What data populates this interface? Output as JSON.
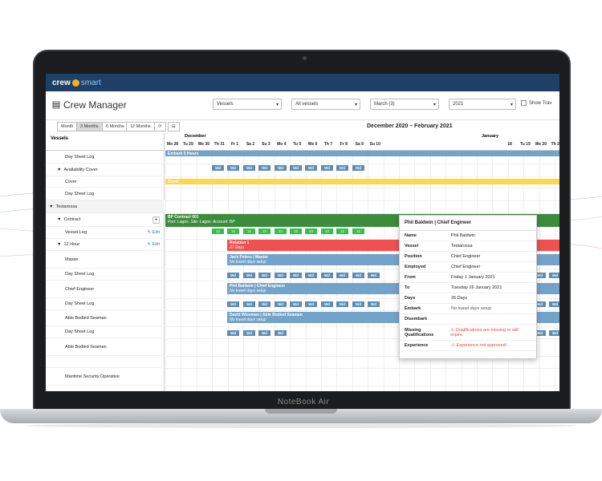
{
  "device": {
    "label": "NoteBook Air"
  },
  "app": {
    "logo_main": "crew",
    "logo_accent": "smart",
    "page_title": "Crew Manager"
  },
  "filters": {
    "type": "Vessels",
    "vessel": "All vessels",
    "month": "March (3)",
    "year": "2021",
    "show_label": "Show Trav"
  },
  "toolbar": {
    "views": [
      "Month",
      "3 Months",
      "6 Months",
      "12 Months"
    ],
    "active_view": "3 Months",
    "range_title": "December 2020 – February 2021"
  },
  "calendar": {
    "months": [
      "December",
      "January"
    ],
    "days": [
      "Mo 28",
      "Tu 29",
      "We 30",
      "Th 31",
      "Fr 1",
      "Sa 2",
      "Su 3",
      "Mo 4",
      "Tu 5",
      "We 6",
      "Th 7",
      "Fr 8",
      "Sa 9",
      "Su 10",
      "18",
      "Tu 19",
      "We 20",
      "Th 21"
    ]
  },
  "left": {
    "header": "Vessels",
    "rows": [
      {
        "label": "Day Sheet Log",
        "indent": 2
      },
      {
        "label": "Availability Cover",
        "indent": 1,
        "arrow": "▼"
      },
      {
        "label": "Cover",
        "indent": 2
      },
      {
        "label": "Day Sheet Log",
        "indent": 2
      },
      {
        "label": "Testarossa",
        "indent": 0,
        "arrow": "▼"
      },
      {
        "label": "Contract",
        "indent": 1,
        "arrow": "▼",
        "plus": "+"
      },
      {
        "label": "Vessel Log",
        "indent": 2,
        "edit": "Edit"
      },
      {
        "label": "12 Hour",
        "indent": 1,
        "arrow": "▼",
        "edit": "Edit"
      },
      {
        "label": "Master",
        "indent": 2
      },
      {
        "label": "Day Sheet Log",
        "indent": 2
      },
      {
        "label": "Chief Engineer",
        "indent": 2
      },
      {
        "label": "Day Sheet Log",
        "indent": 2
      },
      {
        "label": "Able Bodied Seaman",
        "indent": 2
      },
      {
        "label": "Day Sheet Log",
        "indent": 2
      },
      {
        "label": "Able Bodied Seaman",
        "indent": 2
      },
      {
        "label": "",
        "indent": 2
      },
      {
        "label": "Maritime Security Operative",
        "indent": 2
      }
    ]
  },
  "bars": {
    "embark": "Embark 5 Hours",
    "cover": "Cover",
    "contract_title": "BP Contract 001",
    "contract_sub": "Port: Lagos, Site: Lagos, Account: BP",
    "rotation_title": "Rotation 1",
    "rotation_sub": "27 Days",
    "master_title": "Jack Peters | Master",
    "master_sub": "No travel days setup",
    "engineer_title": "Phil Baldwin | Chief Engineer",
    "engineer_sub": "No travel days setup",
    "seaman_title": "David Wiseman | Able Bodied Seaman",
    "seaman_sub": "No travel days setup",
    "cell_wd": "Wd",
    "cell_12": "12"
  },
  "popup": {
    "title": "Phil Baldwin | Chief Engineer",
    "rows": [
      {
        "label": "Name",
        "value": "Phil Baldwin"
      },
      {
        "label": "Vessel",
        "value": "Testarossa"
      },
      {
        "label": "Position",
        "value": "Chief Engineer"
      },
      {
        "label": "Employed",
        "value": "Chief Engineer"
      },
      {
        "label": "From",
        "value": "Friday 1 January 2021"
      },
      {
        "label": "To",
        "value": "Tuesday 26 January 2021"
      },
      {
        "label": "Days",
        "value": "26 Days"
      },
      {
        "label": "Embark",
        "value": "No travel days setup"
      },
      {
        "label": "Disembark",
        "value": ""
      },
      {
        "label": "Missing Qualifications",
        "value": "Qualifications are missing or will expire."
      },
      {
        "label": "Experience",
        "value": "Experience not approved!"
      }
    ]
  },
  "colors": {
    "topbar": "#1e3f66",
    "blue_bar": "#74a3c9",
    "contract_green": "#3c8c3c",
    "rotation_red": "#f05050",
    "cover_yellow": "#ffd54a",
    "warn": "#e24b4b"
  }
}
